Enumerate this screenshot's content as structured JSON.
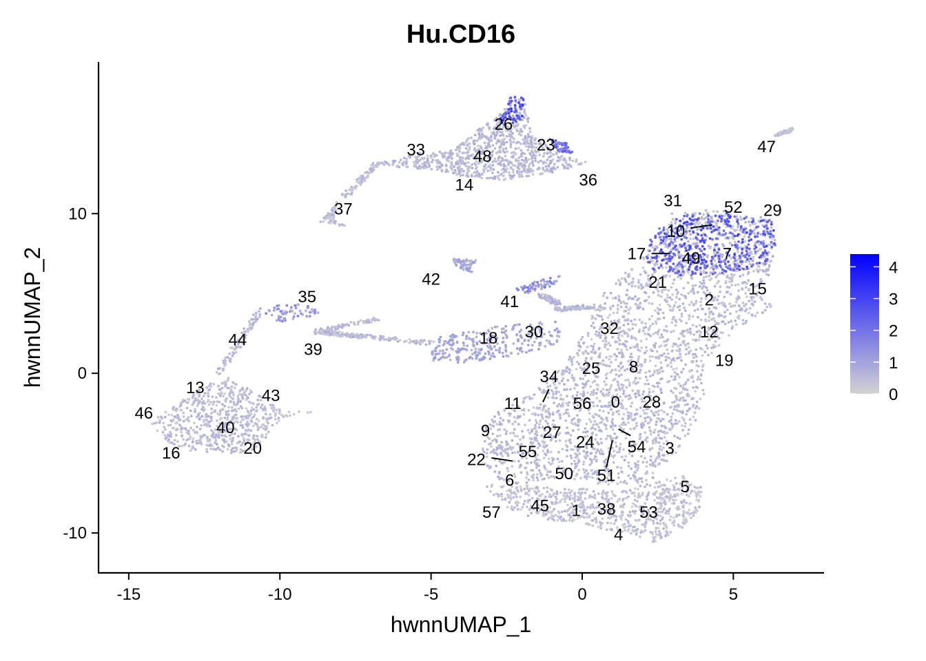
{
  "chart_data": {
    "type": "scatter",
    "title": "Hu.CD16",
    "xlabel": "hwnnUMAP_1",
    "ylabel": "hwnnUMAP_2",
    "xlim": [
      -16,
      8
    ],
    "ylim": [
      -12.5,
      19.5
    ],
    "x_ticks": [
      -15,
      -10,
      -5,
      0,
      5
    ],
    "x_tick_labels": [
      "-15",
      "-10",
      "-5",
      "0",
      "5"
    ],
    "y_ticks": [
      10,
      0,
      -10
    ],
    "y_tick_labels": [
      "10",
      "0",
      "-10"
    ],
    "grid": false,
    "legend_position": "right",
    "color_scale": {
      "low_color": "#d3d3d3",
      "high_color": "#0000ff",
      "min": 0,
      "max": 4.4,
      "ticks": [
        4,
        3,
        2,
        1,
        0
      ],
      "tick_labels": [
        "4",
        "3",
        "2",
        "1",
        "0"
      ]
    },
    "clusters": [
      {
        "label": "26",
        "x": -2.6,
        "y": 15.6
      },
      {
        "label": "23",
        "x": -1.2,
        "y": 14.3
      },
      {
        "label": "47",
        "x": 6.1,
        "y": 14.2
      },
      {
        "label": "33",
        "x": -5.5,
        "y": 14.0
      },
      {
        "label": "48",
        "x": -3.3,
        "y": 13.6
      },
      {
        "label": "36",
        "x": 0.2,
        "y": 12.1
      },
      {
        "label": "14",
        "x": -3.9,
        "y": 11.8
      },
      {
        "label": "31",
        "x": 3.0,
        "y": 10.8
      },
      {
        "label": "52",
        "x": 5.0,
        "y": 10.4
      },
      {
        "label": "29",
        "x": 6.3,
        "y": 10.2
      },
      {
        "label": "37",
        "x": -7.9,
        "y": 10.3
      },
      {
        "label": "10",
        "x": 3.1,
        "y": 8.9
      },
      {
        "label": "17",
        "x": 1.8,
        "y": 7.5
      },
      {
        "label": "49",
        "x": 3.6,
        "y": 7.2
      },
      {
        "label": "7",
        "x": 4.8,
        "y": 7.5
      },
      {
        "label": "42",
        "x": -5.0,
        "y": 5.9
      },
      {
        "label": "21",
        "x": 2.5,
        "y": 5.7
      },
      {
        "label": "15",
        "x": 5.8,
        "y": 5.3
      },
      {
        "label": "35",
        "x": -9.1,
        "y": 4.8
      },
      {
        "label": "41",
        "x": -2.4,
        "y": 4.5
      },
      {
        "label": "2",
        "x": 4.2,
        "y": 4.6
      },
      {
        "label": "32",
        "x": 0.9,
        "y": 2.8
      },
      {
        "label": "30",
        "x": -1.6,
        "y": 2.6
      },
      {
        "label": "12",
        "x": 4.2,
        "y": 2.6
      },
      {
        "label": "18",
        "x": -3.1,
        "y": 2.2
      },
      {
        "label": "44",
        "x": -11.4,
        "y": 2.1
      },
      {
        "label": "39",
        "x": -8.9,
        "y": 1.5
      },
      {
        "label": "19",
        "x": 4.7,
        "y": 0.8
      },
      {
        "label": "25",
        "x": 0.3,
        "y": 0.3
      },
      {
        "label": "8",
        "x": 1.7,
        "y": 0.4
      },
      {
        "label": "34",
        "x": -1.1,
        "y": -0.2
      },
      {
        "label": "13",
        "x": -12.8,
        "y": -0.9
      },
      {
        "label": "43",
        "x": -10.3,
        "y": -1.4
      },
      {
        "label": "11",
        "x": -2.3,
        "y": -1.9
      },
      {
        "label": "56",
        "x": 0.0,
        "y": -1.9
      },
      {
        "label": "0",
        "x": 1.1,
        "y": -1.8
      },
      {
        "label": "28",
        "x": 2.3,
        "y": -1.8
      },
      {
        "label": "46",
        "x": -14.5,
        "y": -2.5
      },
      {
        "label": "40",
        "x": -11.8,
        "y": -3.4
      },
      {
        "label": "9",
        "x": -3.2,
        "y": -3.6
      },
      {
        "label": "27",
        "x": -1.0,
        "y": -3.7
      },
      {
        "label": "24",
        "x": 0.1,
        "y": -4.3
      },
      {
        "label": "54",
        "x": 1.8,
        "y": -4.6
      },
      {
        "label": "3",
        "x": 2.9,
        "y": -4.7
      },
      {
        "label": "20",
        "x": -10.9,
        "y": -4.7
      },
      {
        "label": "55",
        "x": -1.8,
        "y": -4.9
      },
      {
        "label": "16",
        "x": -13.6,
        "y": -5.0
      },
      {
        "label": "22",
        "x": -3.5,
        "y": -5.4
      },
      {
        "label": "51",
        "x": 0.8,
        "y": -6.4
      },
      {
        "label": "50",
        "x": -0.6,
        "y": -6.3
      },
      {
        "label": "6",
        "x": -2.4,
        "y": -6.7
      },
      {
        "label": "5",
        "x": 3.4,
        "y": -7.1
      },
      {
        "label": "45",
        "x": -1.4,
        "y": -8.3
      },
      {
        "label": "1",
        "x": -0.2,
        "y": -8.6
      },
      {
        "label": "38",
        "x": 0.8,
        "y": -8.5
      },
      {
        "label": "57",
        "x": -3.0,
        "y": -8.7
      },
      {
        "label": "53",
        "x": 2.2,
        "y": -8.7
      },
      {
        "label": "4",
        "x": 1.2,
        "y": -10.1
      }
    ],
    "leader_lines": [
      {
        "from": [
          3.6,
          9.1
        ],
        "to": [
          4.3,
          9.3
        ]
      },
      {
        "from": [
          2.3,
          7.5
        ],
        "to": [
          2.9,
          7.5
        ]
      },
      {
        "from": [
          -1.1,
          -1.0
        ],
        "to": [
          -1.3,
          -1.8
        ]
      },
      {
        "from": [
          1.2,
          -3.5
        ],
        "to": [
          1.6,
          -3.9
        ]
      },
      {
        "from": [
          1.0,
          -4.2
        ],
        "to": [
          0.8,
          -5.9
        ]
      },
      {
        "from": [
          -3.0,
          -5.3
        ],
        "to": [
          -2.3,
          -5.5
        ]
      }
    ],
    "point_regions": [
      {
        "shape": "polygon",
        "points": [
          [
            3.0,
            10.3
          ],
          [
            4.7,
            10.2
          ],
          [
            6.4,
            9.6
          ],
          [
            6.4,
            8.1
          ],
          [
            6.2,
            6.2
          ],
          [
            5.7,
            5.2
          ],
          [
            6.3,
            4.2
          ],
          [
            5.0,
            2.6
          ],
          [
            4.1,
            0.8
          ],
          [
            4.0,
            -2.1
          ],
          [
            3.3,
            -4.6
          ],
          [
            2.6,
            -6.1
          ],
          [
            2.2,
            -6.9
          ],
          [
            1.1,
            -7.0
          ],
          [
            0.4,
            -6.9
          ],
          [
            -0.5,
            -6.6
          ],
          [
            -1.6,
            -6.8
          ],
          [
            -2.5,
            -7.1
          ],
          [
            -3.3,
            -5.6
          ],
          [
            -3.3,
            -3.4
          ],
          [
            -2.8,
            -2.4
          ],
          [
            -1.6,
            -1.2
          ],
          [
            -0.6,
            0.5
          ],
          [
            0.1,
            2.6
          ],
          [
            0.6,
            4.8
          ],
          [
            1.5,
            6.5
          ],
          [
            2.4,
            8.1
          ]
        ],
        "expr": 0.45
      },
      {
        "shape": "polygon",
        "points": [
          [
            -3.3,
            -6.9
          ],
          [
            -2.6,
            -8.3
          ],
          [
            -1.6,
            -9.1
          ],
          [
            -0.3,
            -9.3
          ],
          [
            0.9,
            -9.9
          ],
          [
            2.4,
            -10.6
          ],
          [
            3.3,
            -9.7
          ],
          [
            3.9,
            -8.6
          ],
          [
            4.0,
            -7.2
          ],
          [
            3.3,
            -6.4
          ],
          [
            2.3,
            -6.9
          ],
          [
            0.9,
            -7.4
          ],
          [
            -0.6,
            -7.1
          ],
          [
            -2.0,
            -7.0
          ]
        ],
        "expr": 0.35
      },
      {
        "shape": "polygon",
        "points": [
          [
            3.1,
            9.9
          ],
          [
            4.5,
            10.1
          ],
          [
            6.3,
            9.6
          ],
          [
            6.4,
            8.0
          ],
          [
            6.1,
            6.7
          ],
          [
            5.0,
            6.3
          ],
          [
            3.6,
            6.0
          ],
          [
            2.3,
            6.5
          ],
          [
            2.0,
            7.7
          ],
          [
            2.4,
            9.0
          ]
        ],
        "expr": 2.4
      },
      {
        "shape": "polygon",
        "points": [
          [
            -14.3,
            -2.9
          ],
          [
            -13.5,
            -2.0
          ],
          [
            -12.3,
            -0.6
          ],
          [
            -11.7,
            -0.3
          ],
          [
            -10.9,
            -1.1
          ],
          [
            -9.9,
            -2.4
          ],
          [
            -8.9,
            -2.4
          ],
          [
            -10.0,
            -2.9
          ],
          [
            -10.3,
            -3.6
          ],
          [
            -10.6,
            -4.6
          ],
          [
            -11.3,
            -5.0
          ],
          [
            -12.9,
            -4.9
          ],
          [
            -14.0,
            -4.1
          ]
        ],
        "expr": 0.45
      },
      {
        "shape": "polygon",
        "points": [
          [
            -6.8,
            13.1
          ],
          [
            -5.4,
            13.8
          ],
          [
            -4.4,
            13.9
          ],
          [
            -3.2,
            15.6
          ],
          [
            -2.2,
            17.2
          ],
          [
            -1.9,
            17.2
          ],
          [
            -1.7,
            15.1
          ],
          [
            -0.7,
            13.7
          ],
          [
            0.2,
            13.2
          ],
          [
            -0.9,
            12.6
          ],
          [
            -2.6,
            12.1
          ],
          [
            -3.8,
            12.3
          ],
          [
            -4.6,
            12.6
          ],
          [
            -5.6,
            12.8
          ]
        ],
        "expr": 0.5
      },
      {
        "shape": "polygon",
        "points": [
          [
            -2.8,
            15.5
          ],
          [
            -2.4,
            17.3
          ],
          [
            -1.9,
            17.3
          ],
          [
            -2.0,
            15.8
          ],
          [
            -2.6,
            15.3
          ]
        ],
        "expr": 2.6
      },
      {
        "shape": "polygon",
        "points": [
          [
            -1.1,
            14.7
          ],
          [
            -0.5,
            14.4
          ],
          [
            -0.3,
            13.8
          ],
          [
            -0.8,
            13.9
          ]
        ],
        "expr": 2.0
      },
      {
        "shape": "polygon",
        "points": [
          [
            -4.9,
            2.2
          ],
          [
            -3.4,
            2.8
          ],
          [
            -1.9,
            3.1
          ],
          [
            -1.0,
            3.3
          ],
          [
            -0.7,
            3.2
          ],
          [
            -0.8,
            1.9
          ],
          [
            -1.6,
            1.4
          ],
          [
            -2.6,
            1.0
          ],
          [
            -3.8,
            0.7
          ],
          [
            -4.9,
            0.6
          ],
          [
            -5.0,
            1.5
          ]
        ],
        "expr": 0.9
      },
      {
        "shape": "polygon",
        "points": [
          [
            -2.4,
            5.2
          ],
          [
            -1.4,
            5.9
          ],
          [
            -0.7,
            6.1
          ],
          [
            -0.8,
            5.6
          ],
          [
            -1.8,
            5.0
          ]
        ],
        "expr": 1.4
      },
      {
        "shape": "polygon",
        "points": [
          [
            -4.4,
            7.3
          ],
          [
            -3.5,
            7.1
          ],
          [
            -3.7,
            6.5
          ],
          [
            -3.3,
            6.1
          ],
          [
            -4.1,
            6.6
          ]
        ],
        "expr": 0.9
      },
      {
        "shape": "polygon",
        "points": [
          [
            -10.4,
            4.2
          ],
          [
            -9.4,
            4.4
          ],
          [
            -8.4,
            3.8
          ],
          [
            -9.1,
            3.5
          ],
          [
            -10.0,
            3.2
          ],
          [
            -10.5,
            3.6
          ]
        ],
        "expr": 1.1
      },
      {
        "shape": "polygon",
        "points": [
          [
            -8.3,
            10.2
          ],
          [
            -8.1,
            10.8
          ],
          [
            -8.2,
            9.6
          ],
          [
            -7.8,
            9.2
          ],
          [
            -8.7,
            9.5
          ]
        ],
        "expr": 0.45
      },
      {
        "shape": "polygon",
        "points": [
          [
            6.5,
            15.1
          ],
          [
            7.0,
            15.4
          ],
          [
            6.9,
            15.1
          ],
          [
            6.3,
            14.8
          ]
        ],
        "expr": 0.45
      }
    ],
    "point_streaks": [
      {
        "from": [
          -6.8,
          13.1
        ],
        "to": [
          -7.9,
          11.0
        ],
        "expr": 0.4
      },
      {
        "from": [
          -8.8,
          2.6
        ],
        "to": [
          -5.0,
          1.9
        ],
        "expr": 0.45
      },
      {
        "from": [
          -8.8,
          2.6
        ],
        "to": [
          -6.8,
          3.4
        ],
        "expr": 0.45
      },
      {
        "from": [
          -8.8,
          2.6
        ],
        "to": [
          -7.2,
          2.3
        ],
        "expr": 0.45
      },
      {
        "from": [
          -10.6,
          4.1
        ],
        "to": [
          -12.0,
          0.0
        ],
        "expr": 0.5
      },
      {
        "from": [
          -1.4,
          4.9
        ],
        "to": [
          -0.8,
          4.4
        ],
        "expr": 0.6
      },
      {
        "from": [
          -0.8,
          4.0
        ],
        "to": [
          0.4,
          4.2
        ],
        "expr": 0.5
      }
    ]
  }
}
